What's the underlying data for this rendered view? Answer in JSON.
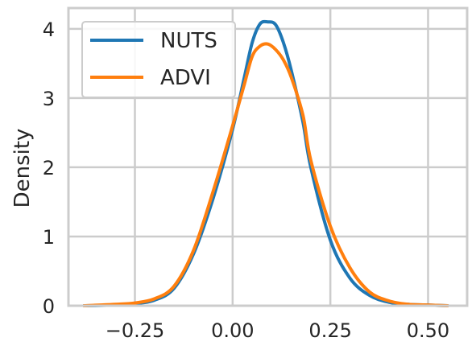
{
  "chart_data": {
    "type": "line",
    "ylabel": "Density",
    "xlabel": "",
    "xlim": [
      -0.42,
      0.6
    ],
    "ylim": [
      0,
      4.3
    ],
    "xticks": [
      {
        "value": -0.25,
        "label": "−0.25"
      },
      {
        "value": 0.0,
        "label": "0.00"
      },
      {
        "value": 0.25,
        "label": "0.25"
      },
      {
        "value": 0.5,
        "label": "0.50"
      }
    ],
    "yticks": [
      {
        "value": 0,
        "label": "0"
      },
      {
        "value": 1,
        "label": "1"
      },
      {
        "value": 2,
        "label": "2"
      },
      {
        "value": 3,
        "label": "3"
      },
      {
        "value": 4,
        "label": "4"
      }
    ],
    "grid": true,
    "legend_position": "top-left",
    "series": [
      {
        "name": "NUTS",
        "color": "#1f77b4",
        "x": [
          -0.38,
          -0.3,
          -0.25,
          -0.2,
          -0.15,
          -0.1,
          -0.05,
          0.0,
          0.03,
          0.05,
          0.07,
          0.09,
          0.11,
          0.13,
          0.15,
          0.18,
          0.2,
          0.25,
          0.3,
          0.35,
          0.4,
          0.45,
          0.5,
          0.55
        ],
        "y": [
          0.0,
          0.01,
          0.03,
          0.08,
          0.25,
          0.75,
          1.55,
          2.55,
          3.3,
          3.8,
          4.07,
          4.1,
          4.06,
          3.8,
          3.4,
          2.65,
          2.0,
          0.95,
          0.4,
          0.15,
          0.05,
          0.02,
          0.01,
          0.0
        ]
      },
      {
        "name": "ADVI",
        "color": "#ff7f0e",
        "x": [
          -0.38,
          -0.3,
          -0.25,
          -0.2,
          -0.15,
          -0.1,
          -0.05,
          0.0,
          0.03,
          0.05,
          0.07,
          0.09,
          0.11,
          0.13,
          0.15,
          0.18,
          0.2,
          0.25,
          0.3,
          0.35,
          0.4,
          0.45,
          0.5,
          0.55
        ],
        "y": [
          0.0,
          0.02,
          0.04,
          0.1,
          0.28,
          0.8,
          1.65,
          2.6,
          3.2,
          3.6,
          3.75,
          3.78,
          3.7,
          3.55,
          3.3,
          2.75,
          2.1,
          1.15,
          0.55,
          0.2,
          0.07,
          0.02,
          0.01,
          0.0
        ]
      }
    ]
  }
}
